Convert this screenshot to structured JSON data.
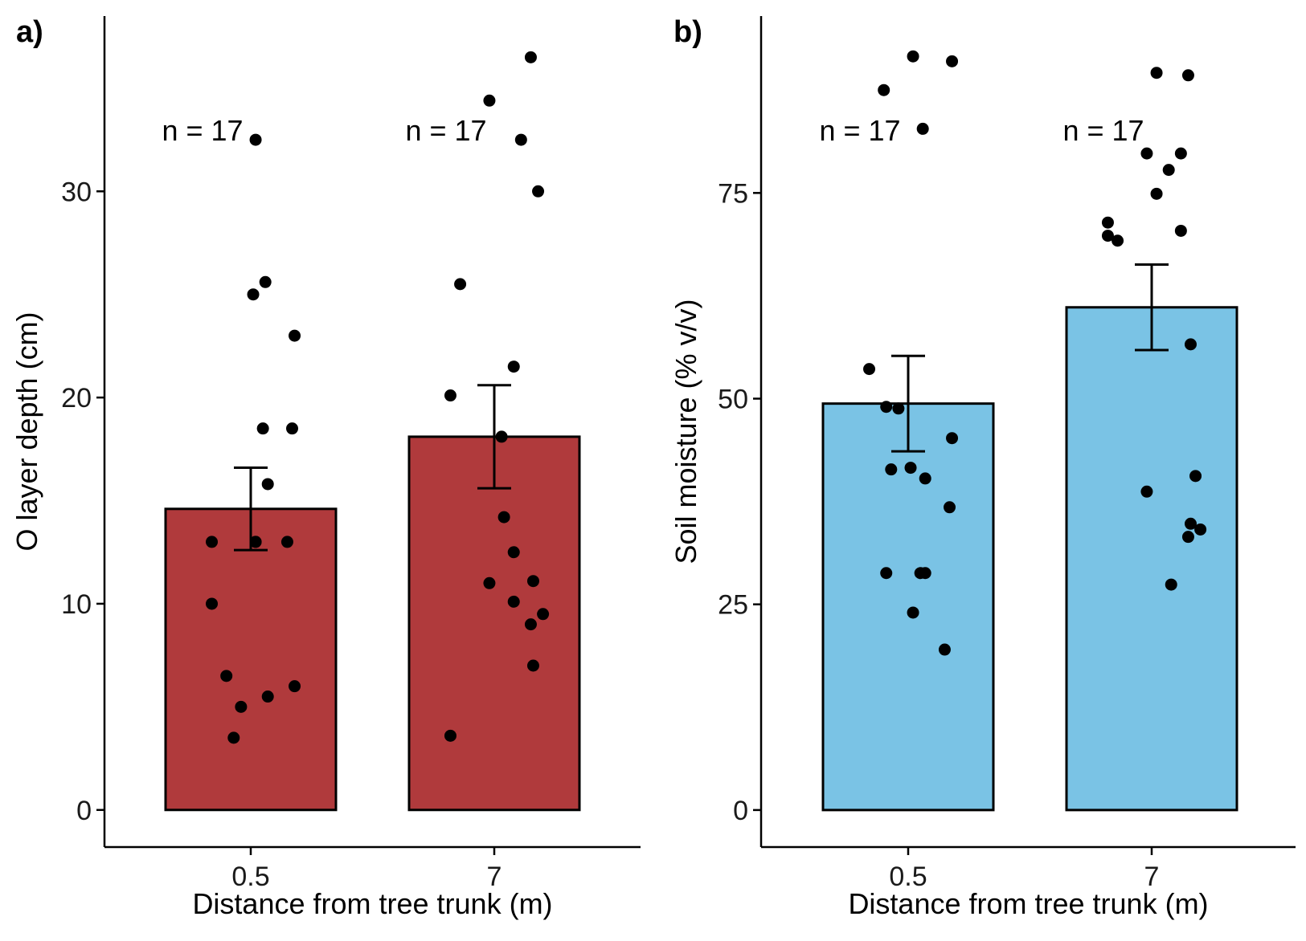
{
  "chart_data": [
    {
      "type": "bar",
      "panel_label": "a)",
      "xlabel": "Distance from tree trunk (m)",
      "ylabel": "O layer depth (cm)",
      "categories": [
        "0.5",
        "7"
      ],
      "values": [
        14.6,
        18.1
      ],
      "error": [
        2.0,
        2.5
      ],
      "bar_color": "#b03a3c",
      "ylim": [
        -1.8,
        38.5
      ],
      "yticks": [
        "0",
        "10",
        "20",
        "30"
      ],
      "n_labels": [
        "n = 17",
        "n = 17"
      ],
      "points": [
        [
          {
            "x": -0.16,
            "y": 13.0
          },
          {
            "x": 0.02,
            "y": 13.0
          },
          {
            "x": 0.15,
            "y": 13.0
          },
          {
            "x": -0.16,
            "y": 10.0
          },
          {
            "x": -0.1,
            "y": 6.5
          },
          {
            "x": -0.04,
            "y": 5.0
          },
          {
            "x": -0.07,
            "y": 3.5
          },
          {
            "x": 0.07,
            "y": 5.5
          },
          {
            "x": 0.18,
            "y": 6.0
          },
          {
            "x": 0.07,
            "y": 15.8
          },
          {
            "x": 0.05,
            "y": 18.5
          },
          {
            "x": 0.17,
            "y": 18.5
          },
          {
            "x": 0.18,
            "y": 23.0
          },
          {
            "x": 0.01,
            "y": 25.0
          },
          {
            "x": 0.06,
            "y": 25.6
          },
          {
            "x": 0.02,
            "y": 32.5
          },
          {
            "x": 0.02,
            "y": 13.0
          }
        ],
        [
          {
            "x": -0.18,
            "y": 3.6
          },
          {
            "x": -0.02,
            "y": 11.0
          },
          {
            "x": 0.08,
            "y": 10.1
          },
          {
            "x": 0.16,
            "y": 11.1
          },
          {
            "x": 0.15,
            "y": 9.0
          },
          {
            "x": 0.2,
            "y": 9.5
          },
          {
            "x": 0.16,
            "y": 7.0
          },
          {
            "x": 0.08,
            "y": 12.5
          },
          {
            "x": 0.04,
            "y": 14.2
          },
          {
            "x": 0.03,
            "y": 18.1
          },
          {
            "x": -0.18,
            "y": 20.1
          },
          {
            "x": 0.08,
            "y": 21.5
          },
          {
            "x": -0.14,
            "y": 25.5
          },
          {
            "x": 0.18,
            "y": 30.0
          },
          {
            "x": 0.11,
            "y": 32.5
          },
          {
            "x": -0.02,
            "y": 34.4
          },
          {
            "x": 0.15,
            "y": 36.5
          }
        ]
      ]
    },
    {
      "type": "bar",
      "panel_label": "b)",
      "xlabel": "Distance from tree trunk (m)",
      "ylabel": "Soil moisture (% v/v)",
      "categories": [
        "0.5",
        "7"
      ],
      "values": [
        49.4,
        61.1
      ],
      "error": [
        5.8,
        5.2
      ],
      "bar_color": "#7ac3e5",
      "ylim": [
        -4.5,
        96.5
      ],
      "yticks": [
        "0",
        "25",
        "50",
        "75"
      ],
      "n_labels": [
        "n = 17",
        "n = 17"
      ],
      "points": [
        [
          {
            "x": -0.16,
            "y": 53.6
          },
          {
            "x": -0.09,
            "y": 49.0
          },
          {
            "x": -0.04,
            "y": 48.8
          },
          {
            "x": 0.18,
            "y": 45.2
          },
          {
            "x": -0.07,
            "y": 41.4
          },
          {
            "x": 0.01,
            "y": 41.6
          },
          {
            "x": 0.07,
            "y": 40.3
          },
          {
            "x": 0.17,
            "y": 36.8
          },
          {
            "x": -0.09,
            "y": 28.8
          },
          {
            "x": 0.05,
            "y": 28.8
          },
          {
            "x": 0.07,
            "y": 28.8
          },
          {
            "x": 0.02,
            "y": 24.0
          },
          {
            "x": 0.15,
            "y": 19.5
          },
          {
            "x": -0.1,
            "y": 87.5
          },
          {
            "x": 0.02,
            "y": 91.6
          },
          {
            "x": 0.18,
            "y": 91.0
          },
          {
            "x": 0.06,
            "y": 82.8
          }
        ],
        [
          {
            "x": -0.18,
            "y": 71.4
          },
          {
            "x": -0.18,
            "y": 69.8
          },
          {
            "x": -0.14,
            "y": 69.2
          },
          {
            "x": 0.02,
            "y": 74.9
          },
          {
            "x": 0.07,
            "y": 77.8
          },
          {
            "x": 0.12,
            "y": 79.8
          },
          {
            "x": -0.02,
            "y": 79.8
          },
          {
            "x": 0.02,
            "y": 89.6
          },
          {
            "x": 0.15,
            "y": 89.3
          },
          {
            "x": 0.12,
            "y": 70.4
          },
          {
            "x": 0.16,
            "y": 56.6
          },
          {
            "x": 0.18,
            "y": 40.6
          },
          {
            "x": -0.02,
            "y": 38.7
          },
          {
            "x": 0.16,
            "y": 34.8
          },
          {
            "x": 0.2,
            "y": 34.1
          },
          {
            "x": 0.15,
            "y": 33.2
          },
          {
            "x": 0.08,
            "y": 27.4
          }
        ]
      ]
    }
  ]
}
